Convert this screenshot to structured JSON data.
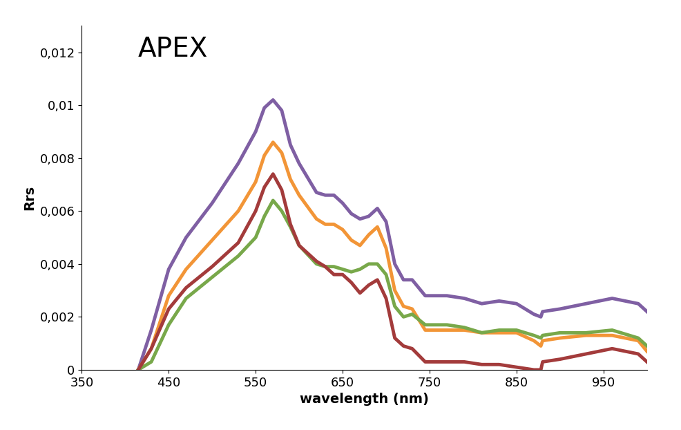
{
  "chart_data": {
    "type": "line",
    "title": "APEX",
    "x_label": "wavelength (nm)",
    "y_label": "Rrs",
    "x": [
      415,
      430,
      450,
      470,
      500,
      530,
      550,
      560,
      570,
      580,
      590,
      600,
      620,
      630,
      640,
      650,
      660,
      670,
      680,
      690,
      700,
      710,
      720,
      730,
      745,
      770,
      790,
      810,
      830,
      850,
      870,
      878,
      880,
      900,
      930,
      960,
      990,
      1000
    ],
    "series": [
      {
        "color": "#7f5fa3",
        "values": [
          0,
          0.0015,
          0.0038,
          0.005,
          0.0063,
          0.0078,
          0.009,
          0.0099,
          0.0102,
          0.0098,
          0.0085,
          0.0078,
          0.0067,
          0.0066,
          0.0066,
          0.0063,
          0.0059,
          0.0057,
          0.0058,
          0.0061,
          0.0056,
          0.004,
          0.0034,
          0.0034,
          0.0028,
          0.0028,
          0.0027,
          0.0025,
          0.0026,
          0.0025,
          0.0021,
          0.002,
          0.0022,
          0.0023,
          0.0025,
          0.0027,
          0.0025,
          0.0022
        ]
      },
      {
        "color": "#f29537",
        "values": [
          0,
          0.0008,
          0.0028,
          0.0038,
          0.0049,
          0.006,
          0.0071,
          0.0081,
          0.0086,
          0.0082,
          0.0072,
          0.0066,
          0.0057,
          0.0055,
          0.0055,
          0.0053,
          0.0049,
          0.0047,
          0.0051,
          0.0054,
          0.0046,
          0.003,
          0.0024,
          0.0023,
          0.0015,
          0.0015,
          0.0015,
          0.0014,
          0.0014,
          0.0014,
          0.0011,
          0.0009,
          0.0011,
          0.0012,
          0.0013,
          0.0013,
          0.0011,
          0.0007
        ]
      },
      {
        "color": "#78a84a",
        "values": [
          0,
          0.0003,
          0.0017,
          0.0027,
          0.0035,
          0.0043,
          0.005,
          0.0058,
          0.0064,
          0.006,
          0.0054,
          0.0047,
          0.004,
          0.0039,
          0.0039,
          0.0038,
          0.0037,
          0.0038,
          0.004,
          0.004,
          0.0036,
          0.0024,
          0.002,
          0.0021,
          0.0017,
          0.0017,
          0.0016,
          0.0014,
          0.0015,
          0.0015,
          0.0013,
          0.0012,
          0.0013,
          0.0014,
          0.0014,
          0.0015,
          0.0012,
          0.0009
        ]
      },
      {
        "color": "#a33b3b",
        "values": [
          0,
          0.0008,
          0.0023,
          0.0031,
          0.0039,
          0.0048,
          0.006,
          0.0069,
          0.0074,
          0.0068,
          0.0055,
          0.0047,
          0.0041,
          0.0039,
          0.0036,
          0.0036,
          0.0033,
          0.0029,
          0.0032,
          0.0034,
          0.0027,
          0.0012,
          0.0009,
          0.0008,
          0.0003,
          0.0003,
          0.0003,
          0.0002,
          0.0002,
          0.0001,
          0.0,
          0.0,
          0.0003,
          0.0004,
          0.0006,
          0.0008,
          0.0006,
          0.0003
        ]
      }
    ],
    "xlim": [
      350,
      1000
    ],
    "xticks": [
      350,
      450,
      550,
      650,
      750,
      850,
      950
    ],
    "ylim": [
      0,
      0.013
    ],
    "yticks": [
      0,
      {
        "value": 0.002,
        "label": "0,002"
      },
      {
        "value": 0.004,
        "label": "0,004"
      },
      {
        "value": 0.006,
        "label": "0,006"
      },
      {
        "value": 0.008,
        "label": "0,008"
      },
      {
        "value": 0.01,
        "label": "0,01"
      },
      {
        "value": 0.012,
        "label": "0,012"
      }
    ],
    "grid": false
  }
}
